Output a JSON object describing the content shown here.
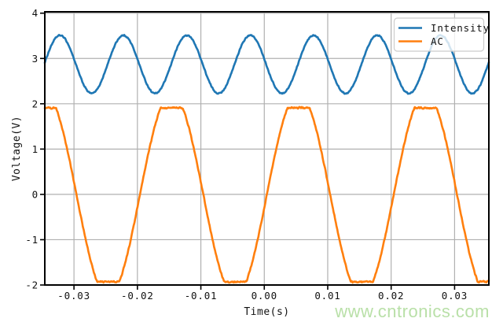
{
  "figure": {
    "background": "#ffffff",
    "watermark": {
      "text": "www.cntronics.com",
      "color": "#b9e0a8"
    }
  },
  "chart_data": {
    "type": "line",
    "title": "",
    "xlabel": "Time(s)",
    "ylabel": "Voltage(V)",
    "xlim": [
      -0.0346,
      0.0354
    ],
    "ylim": [
      -2,
      4.03
    ],
    "x_ticks": [
      -0.03,
      -0.02,
      -0.01,
      0,
      0.01,
      0.02,
      0.03
    ],
    "x_tick_labels": [
      "-0.03",
      "-0.02",
      "-0.01",
      "0.00",
      "0.01",
      "0.02",
      "0.03"
    ],
    "y_ticks": [
      -2,
      -1,
      0,
      1,
      2,
      3,
      4
    ],
    "y_tick_labels": [
      "-2",
      "-1",
      "0",
      "1",
      "2",
      "3",
      "4"
    ],
    "grid": true,
    "grid_color": "#b0b0b0",
    "legend_position": "upper right",
    "series": [
      {
        "name": "Intensity",
        "color": "#1f77b4",
        "waveform": "sine",
        "frequency_hz": 100,
        "mean_v": 2.87,
        "amplitude_v": 0.64,
        "peak_time_s": -0.0022,
        "min_v": 2.23,
        "max_v": 3.5,
        "noise_v": 0.016
      },
      {
        "name": "AC",
        "color": "#ff7f0e",
        "waveform": "clipped-sine",
        "frequency_hz": 50,
        "mean_v": -0.01,
        "amplitude_v": 2.25,
        "peak_time_s": -0.0146,
        "clip_max_v": 1.91,
        "clip_min_v": -1.93,
        "min_v": -1.93,
        "max_v": 1.91,
        "noise_v": 0.022
      }
    ]
  }
}
